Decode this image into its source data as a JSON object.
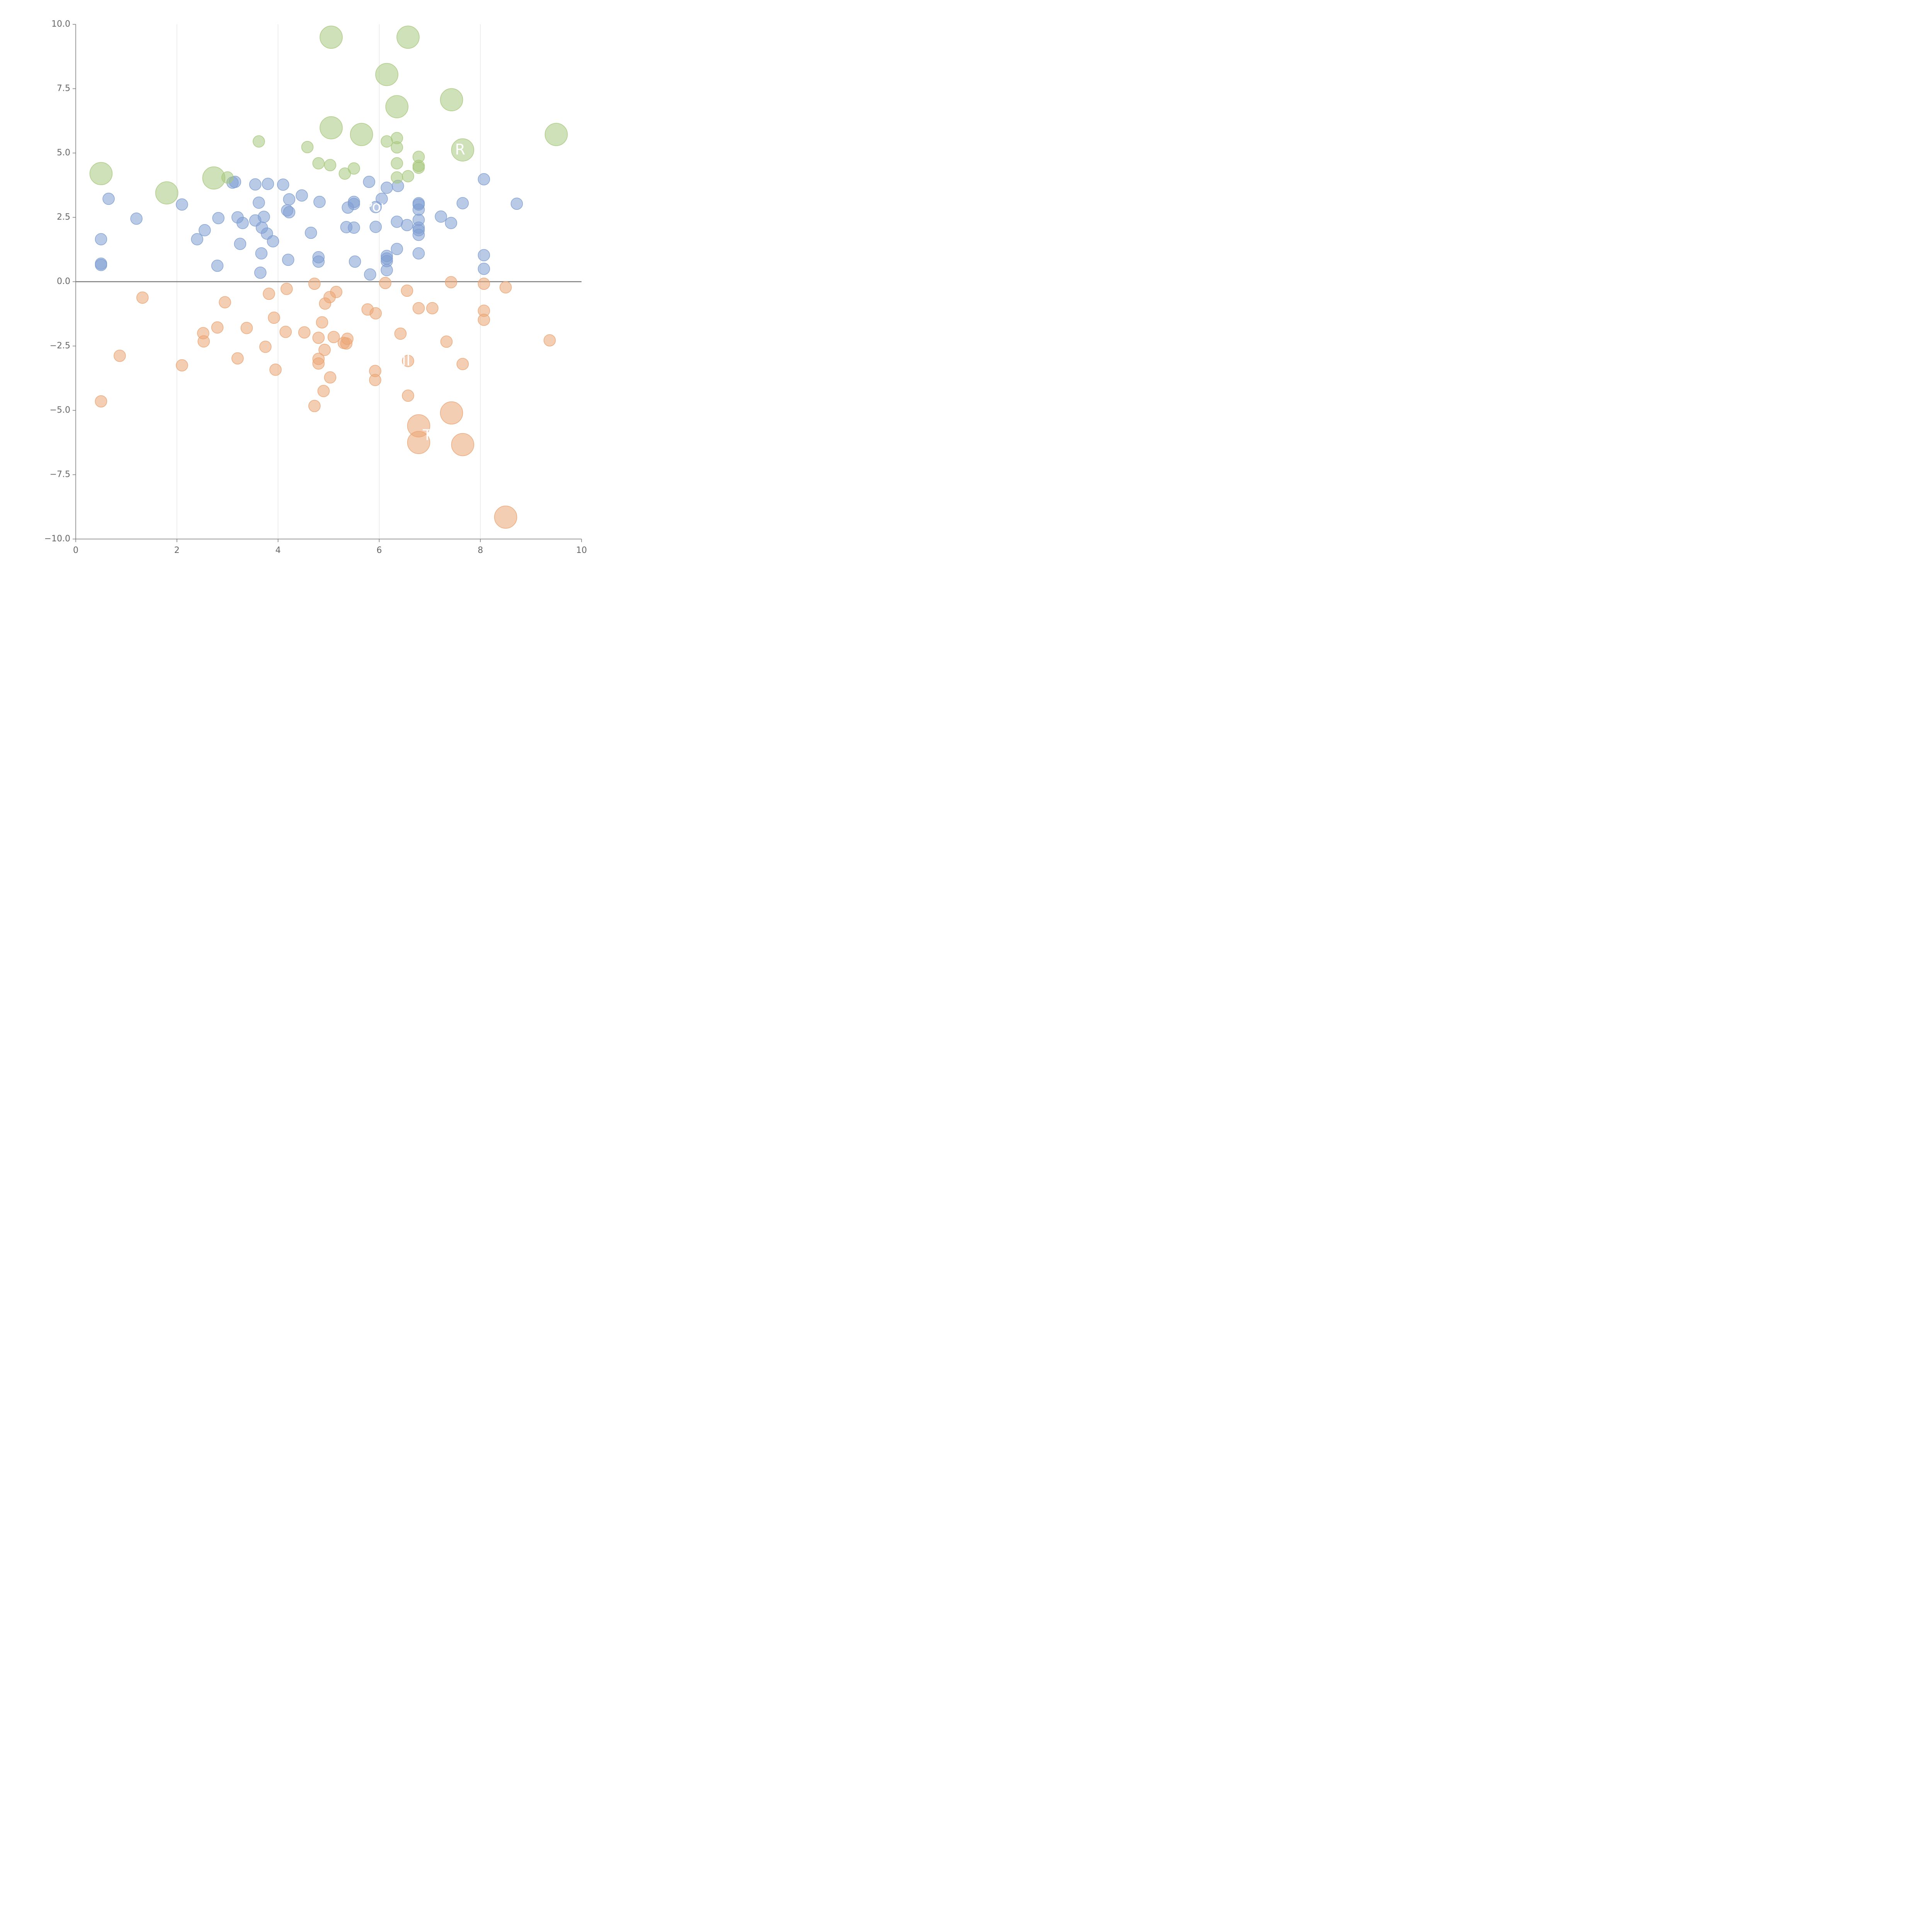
{
  "chart_data": {
    "type": "scatter",
    "title": "",
    "xlabel": "",
    "ylabel": "",
    "xlim": [
      0,
      10
    ],
    "ylim": [
      -10,
      10
    ],
    "x_ticks": [
      "0",
      "2",
      "4",
      "6",
      "8",
      "10"
    ],
    "y_ticks": [
      "−10.0",
      "−7.5",
      "−5.0",
      "−2.5",
      "0.0",
      "2.5",
      "5.0",
      "7.5",
      "10.0"
    ],
    "grid": "vertical",
    "reference_line_y": 0,
    "colors": {
      "positive_small": "#7f9fd1",
      "positive_large": "#a8c97e",
      "negative": "#eba574"
    },
    "series": [
      {
        "name": "positive_small",
        "color": "#7f9fd1",
        "points": [
          [
            0.5,
            1.65
          ],
          [
            0.5,
            0.7
          ],
          [
            0.5,
            0.65
          ],
          [
            0.65,
            3.22
          ],
          [
            1.2,
            2.45
          ],
          [
            2.1,
            3.0
          ],
          [
            2.4,
            1.65
          ],
          [
            2.55,
            2.0
          ],
          [
            2.8,
            0.62
          ],
          [
            2.82,
            2.47
          ],
          [
            3.1,
            3.85
          ],
          [
            3.15,
            3.88
          ],
          [
            3.2,
            2.5
          ],
          [
            3.25,
            1.47
          ],
          [
            3.3,
            2.28
          ],
          [
            3.55,
            3.78
          ],
          [
            3.55,
            2.38
          ],
          [
            3.62,
            3.07
          ],
          [
            3.65,
            0.35
          ],
          [
            3.67,
            1.1
          ],
          [
            3.68,
            2.1
          ],
          [
            3.72,
            2.52
          ],
          [
            3.78,
            1.87
          ],
          [
            3.8,
            3.8
          ],
          [
            3.9,
            1.57
          ],
          [
            4.1,
            3.77
          ],
          [
            4.18,
            2.77
          ],
          [
            4.2,
            0.85
          ],
          [
            4.22,
            2.7
          ],
          [
            4.22,
            3.2
          ],
          [
            4.47,
            3.35
          ],
          [
            4.65,
            1.9
          ],
          [
            4.8,
            0.95
          ],
          [
            4.8,
            0.78
          ],
          [
            4.82,
            3.1
          ],
          [
            5.35,
            2.12
          ],
          [
            5.38,
            2.88
          ],
          [
            5.5,
            3.1
          ],
          [
            5.5,
            3.02
          ],
          [
            5.5,
            2.1
          ],
          [
            5.52,
            0.78
          ],
          [
            5.8,
            3.88
          ],
          [
            5.82,
            0.28
          ],
          [
            5.93,
            2.13
          ],
          [
            5.93,
            2.9
          ],
          [
            6.05,
            3.22
          ],
          [
            6.15,
            0.45
          ],
          [
            6.15,
            0.8
          ],
          [
            6.15,
            0.9
          ],
          [
            6.15,
            1.0
          ],
          [
            6.15,
            3.65
          ],
          [
            6.35,
            1.27
          ],
          [
            6.35,
            2.33
          ],
          [
            6.37,
            3.72
          ],
          [
            6.55,
            2.2
          ],
          [
            6.78,
            3.05
          ],
          [
            6.78,
            3.0
          ],
          [
            6.78,
            2.8
          ],
          [
            6.78,
            2.4
          ],
          [
            6.78,
            2.1
          ],
          [
            6.78,
            2.0
          ],
          [
            6.78,
            1.82
          ],
          [
            6.78,
            1.1
          ],
          [
            7.22,
            2.53
          ],
          [
            7.42,
            2.28
          ],
          [
            7.65,
            3.05
          ],
          [
            8.07,
            3.98
          ],
          [
            8.07,
            1.03
          ],
          [
            8.07,
            0.5
          ],
          [
            8.72,
            3.03
          ]
        ]
      },
      {
        "name": "positive_large",
        "color": "#a8c97e",
        "points": [
          [
            0.5,
            4.2,
            2
          ],
          [
            1.8,
            3.45,
            2
          ],
          [
            2.73,
            4.03,
            2
          ],
          [
            3.0,
            4.05,
            1
          ],
          [
            3.62,
            5.45,
            1
          ],
          [
            4.58,
            5.23,
            1
          ],
          [
            4.8,
            4.6,
            1
          ],
          [
            5.03,
            4.53,
            1
          ],
          [
            5.05,
            9.5,
            2
          ],
          [
            5.05,
            5.98,
            2
          ],
          [
            5.32,
            4.2,
            1
          ],
          [
            5.5,
            4.4,
            1
          ],
          [
            5.65,
            5.72,
            2
          ],
          [
            6.15,
            8.05,
            2
          ],
          [
            6.15,
            5.45,
            1
          ],
          [
            6.35,
            5.58,
            1
          ],
          [
            6.35,
            5.22,
            1
          ],
          [
            6.35,
            4.6,
            1
          ],
          [
            6.35,
            4.05,
            1
          ],
          [
            6.35,
            6.8,
            2
          ],
          [
            6.57,
            9.5,
            2
          ],
          [
            6.57,
            4.1,
            1
          ],
          [
            6.78,
            4.85,
            1
          ],
          [
            6.78,
            4.5,
            1
          ],
          [
            6.78,
            4.43,
            1
          ],
          [
            7.43,
            7.07,
            2
          ],
          [
            7.65,
            5.12,
            2
          ],
          [
            9.5,
            5.72,
            2
          ]
        ]
      },
      {
        "name": "negative",
        "color": "#eba574",
        "points": [
          [
            0.5,
            -4.65,
            1
          ],
          [
            0.87,
            -2.88,
            1
          ],
          [
            1.32,
            -0.62,
            1
          ],
          [
            2.1,
            -3.25,
            1
          ],
          [
            2.52,
            -2.0,
            1
          ],
          [
            2.53,
            -2.32,
            1
          ],
          [
            2.8,
            -1.78,
            1
          ],
          [
            2.95,
            -0.8,
            1
          ],
          [
            3.2,
            -2.98,
            1
          ],
          [
            3.38,
            -1.8,
            1
          ],
          [
            3.75,
            -2.53,
            1
          ],
          [
            3.82,
            -0.47,
            1
          ],
          [
            3.92,
            -1.4,
            1
          ],
          [
            3.95,
            -3.42,
            1
          ],
          [
            4.15,
            -1.95,
            1
          ],
          [
            4.17,
            -0.28,
            1
          ],
          [
            4.52,
            -1.97,
            1
          ],
          [
            4.72,
            -4.83,
            1
          ],
          [
            4.72,
            -0.08,
            1
          ],
          [
            4.8,
            -2.18,
            1
          ],
          [
            4.8,
            -3.0,
            1
          ],
          [
            4.8,
            -3.18,
            1
          ],
          [
            4.87,
            -1.58,
            1
          ],
          [
            4.9,
            -4.25,
            1
          ],
          [
            4.92,
            -2.65,
            1
          ],
          [
            4.93,
            -0.85,
            1
          ],
          [
            5.02,
            -0.6,
            1
          ],
          [
            5.03,
            -3.72,
            1
          ],
          [
            5.1,
            -2.15,
            1
          ],
          [
            5.15,
            -0.4,
            1
          ],
          [
            5.3,
            -2.38,
            1
          ],
          [
            5.35,
            -2.4,
            1
          ],
          [
            5.37,
            -2.22,
            1
          ],
          [
            5.77,
            -1.08,
            1
          ],
          [
            5.92,
            -3.47,
            1
          ],
          [
            5.92,
            -3.82,
            1
          ],
          [
            5.93,
            -1.23,
            1
          ],
          [
            6.12,
            -0.05,
            1
          ],
          [
            6.42,
            -2.02,
            1
          ],
          [
            6.55,
            -0.35,
            1
          ],
          [
            6.57,
            -4.43,
            1
          ],
          [
            6.57,
            -3.08,
            1
          ],
          [
            6.78,
            -1.03,
            1
          ],
          [
            6.78,
            -5.6,
            2
          ],
          [
            6.78,
            -6.25,
            2
          ],
          [
            7.05,
            -1.03,
            1
          ],
          [
            7.33,
            -2.33,
            1
          ],
          [
            7.42,
            -0.02,
            1
          ],
          [
            7.43,
            -5.1,
            2
          ],
          [
            7.65,
            -3.2,
            1
          ],
          [
            7.65,
            -6.33,
            2
          ],
          [
            8.07,
            -0.08,
            1
          ],
          [
            8.07,
            -1.13,
            1
          ],
          [
            8.07,
            -1.48,
            1
          ],
          [
            8.5,
            -0.22,
            1
          ],
          [
            8.5,
            -9.15,
            2
          ],
          [
            9.37,
            -2.28,
            1
          ]
        ]
      }
    ],
    "annotations": [
      {
        "text": "Pov",
        "x": 5.95,
        "y": 2.88
      },
      {
        "text": "R",
        "x": 7.6,
        "y": 5.1
      },
      {
        "text": "MI",
        "x": 6.45,
        "y": -3.1
      },
      {
        "text": "T",
        "x": 6.95,
        "y": -6.0
      }
    ]
  }
}
